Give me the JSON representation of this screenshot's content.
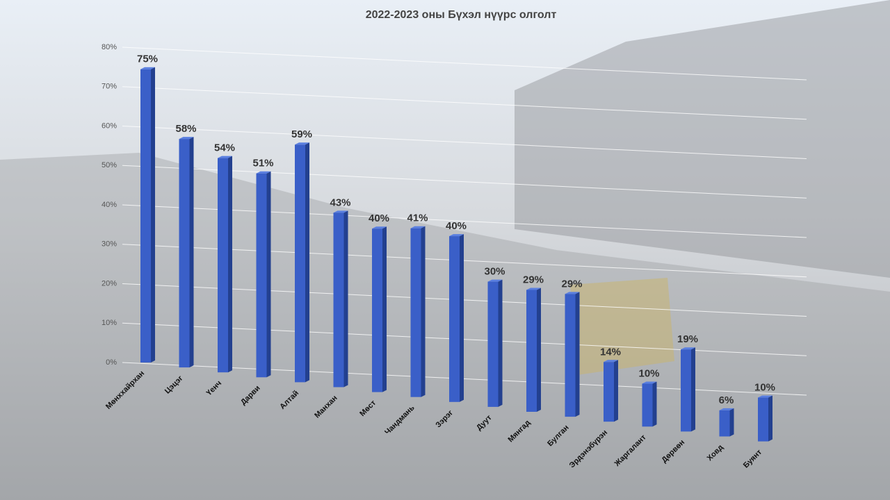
{
  "chart_data": {
    "type": "bar",
    "title": "2022-2023 оны Бүхэл нүүрс олголт",
    "categories": [
      "Мөнххайрхан",
      "Цэцэг",
      "Үенч",
      "Дарви",
      "Алтай",
      "Манхан",
      "Мөст",
      "Чандмань",
      "Зэрэг",
      "Дуут",
      "Мянгад",
      "Булган",
      "Эрдэнэбүрэн",
      "Жаргалант",
      "Дөрвөн",
      "Ховд",
      "Буянт"
    ],
    "values": [
      75,
      58,
      54,
      51,
      59,
      43,
      40,
      41,
      40,
      30,
      29,
      29,
      14,
      10,
      19,
      6,
      10
    ],
    "value_labels": [
      "75%",
      "58%",
      "54%",
      "51%",
      "59%",
      "43%",
      "40%",
      "41%",
      "40%",
      "30%",
      "29%",
      "29%",
      "14%",
      "10%",
      "19%",
      "6%",
      "10%"
    ],
    "color": "#3a5fc8",
    "ylim": [
      0,
      80
    ],
    "yticks": [
      {
        "value": 0,
        "label": "0%"
      },
      {
        "value": 10,
        "label": "10%"
      },
      {
        "value": 20,
        "label": "20%"
      },
      {
        "value": 30,
        "label": "30%"
      },
      {
        "value": 40,
        "label": "40%"
      },
      {
        "value": 50,
        "label": "50%"
      },
      {
        "value": 60,
        "label": "60%"
      },
      {
        "value": 70,
        "label": "70%"
      },
      {
        "value": 80,
        "label": "80%"
      }
    ],
    "grid": true
  }
}
